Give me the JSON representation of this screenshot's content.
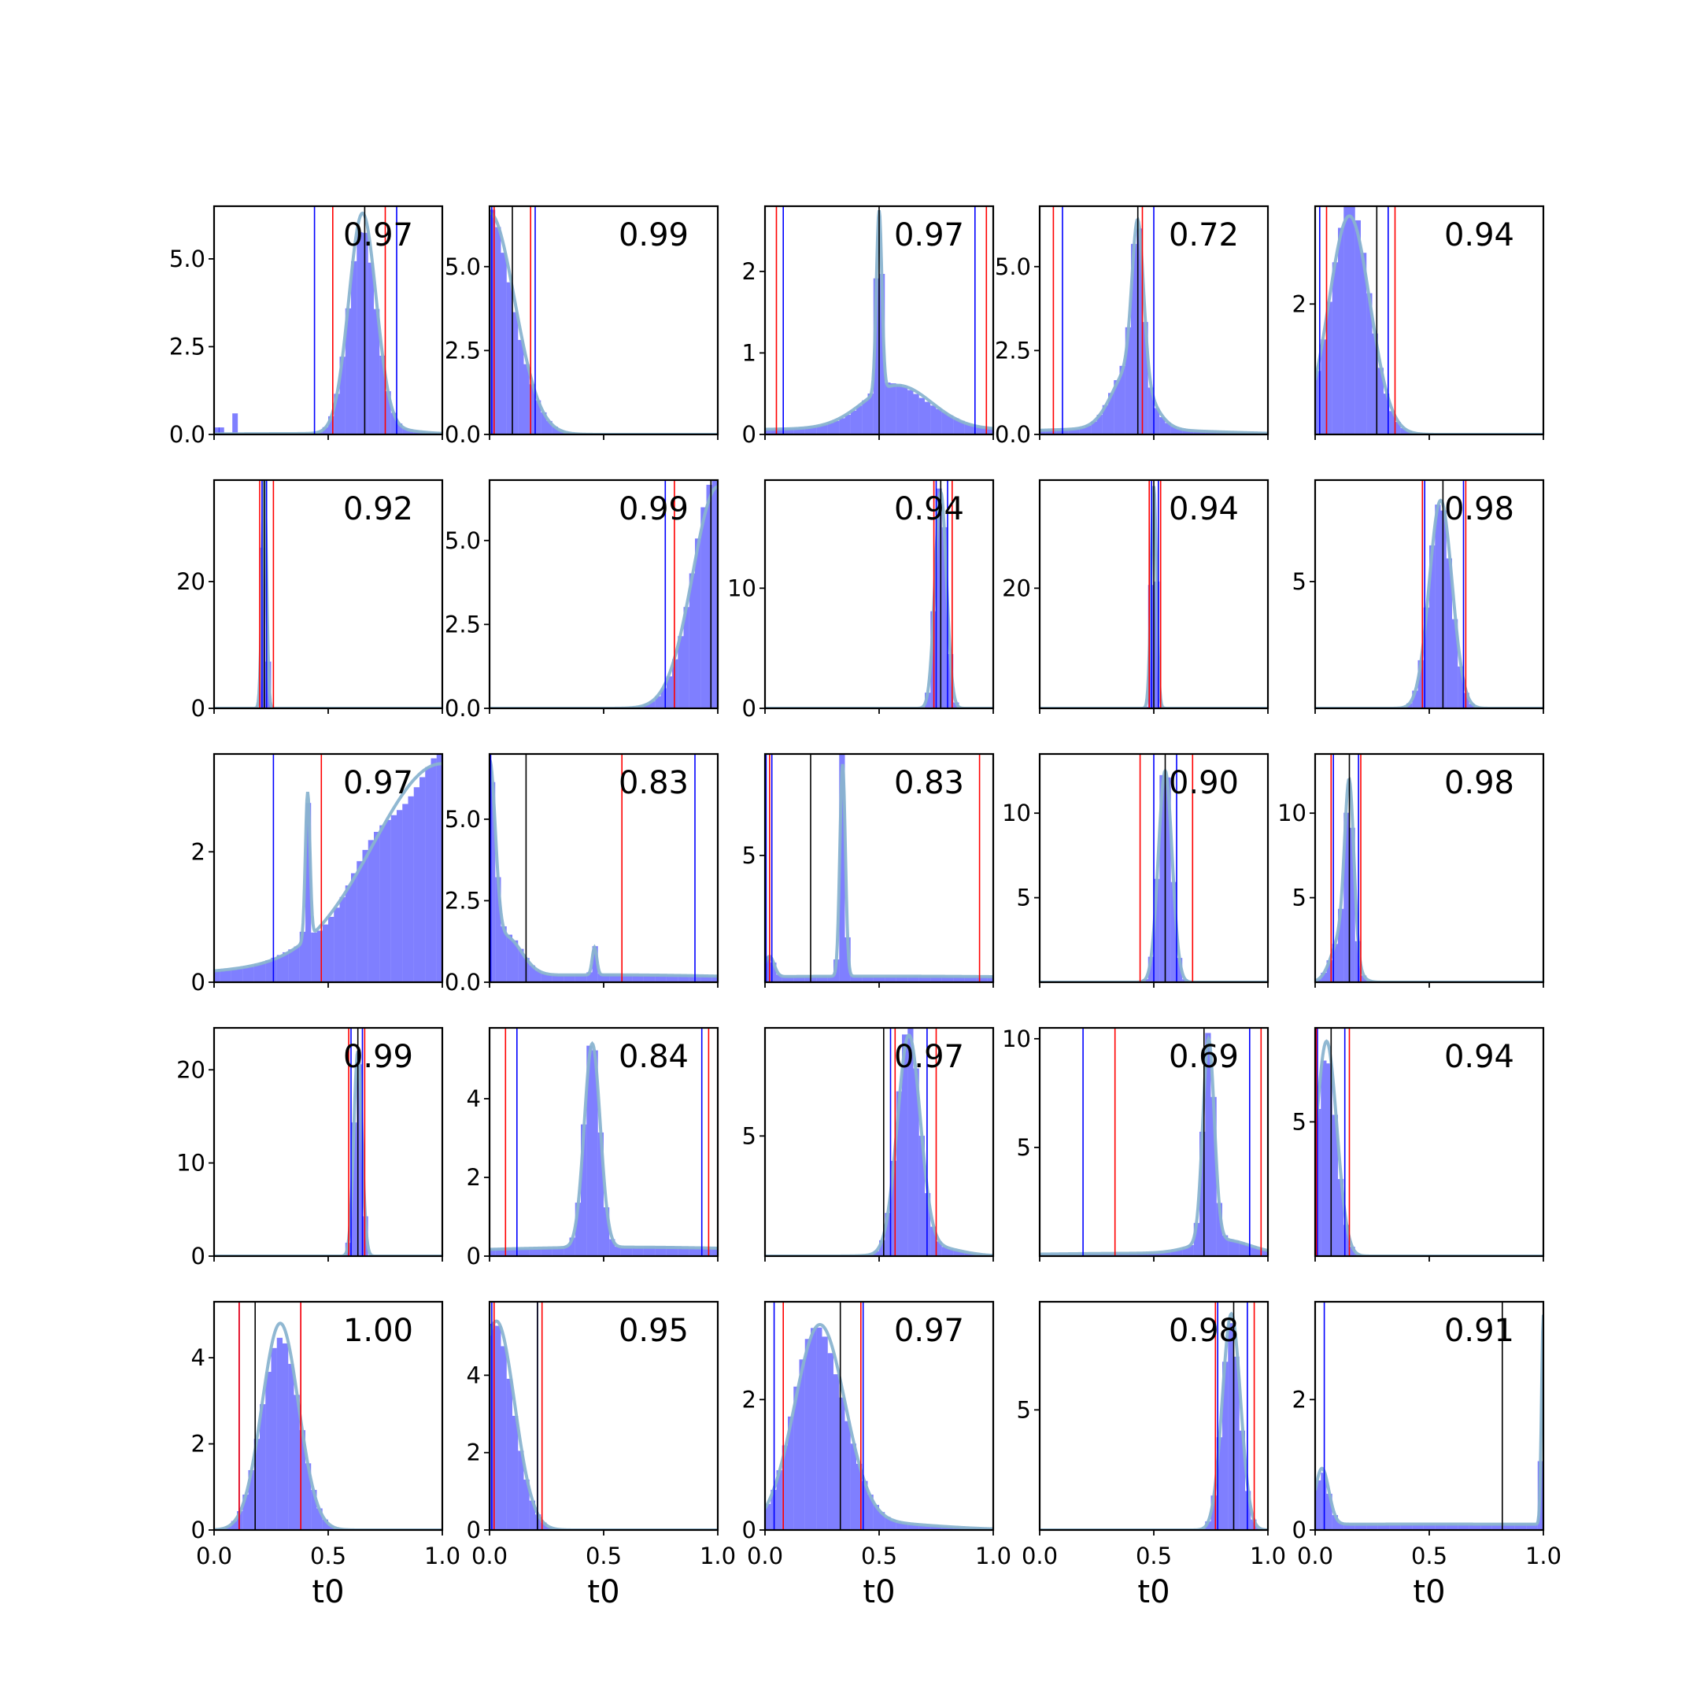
{
  "figure": {
    "rows": 5,
    "cols": 5,
    "background": "#ffffff",
    "colors": {
      "hist": "#0000ff",
      "hist_alpha": 0.5,
      "kde": "#8ab4d0",
      "marker_blue": "#0000ff",
      "marker_red": "#ff0000",
      "marker_black": "#000000"
    },
    "xlabel": "t0",
    "x_ticks": [
      "0.0",
      "0.5",
      "1.0"
    ]
  },
  "chart_data": [
    {
      "type": "histogram",
      "row": 0,
      "col": 0,
      "annotation": "0.97",
      "ylim": [
        0,
        6.5
      ],
      "y_ticks": [
        {
          "v": 0,
          "label": "0.0"
        },
        {
          "v": 2.5,
          "label": "2.5"
        },
        {
          "v": 5,
          "label": "5.0"
        }
      ],
      "density": {
        "comps": [
          {
            "w": 0.93,
            "mu": 0.65,
            "sd": 0.06
          },
          {
            "w": 0.04,
            "mu": 0.75,
            "sd": 0.12
          },
          {
            "w": 0.03,
            "mu": 0.5,
            "sd": 0.5
          }
        ],
        "peak": 6.3
      },
      "extra_bars": [
        [
          0.0,
          0.2
        ],
        [
          0.02,
          0.2
        ],
        [
          0.08,
          0.6
        ]
      ],
      "markers": {
        "blue": [
          0.44,
          0.8
        ],
        "red": [
          0.52,
          0.75
        ],
        "black": [
          0.66
        ]
      }
    },
    {
      "type": "histogram",
      "row": 0,
      "col": 1,
      "annotation": "0.99",
      "ylim": [
        0,
        6.8
      ],
      "y_ticks": [
        {
          "v": 0,
          "label": "0.0"
        },
        {
          "v": 2.5,
          "label": "2.5"
        },
        {
          "v": 5,
          "label": "5.0"
        }
      ],
      "density": {
        "comps": [
          {
            "w": 1,
            "mu": 0.0,
            "sd": 0.11
          }
        ],
        "peak": 6.6
      },
      "markers": {
        "blue": [
          0.01,
          0.2
        ],
        "red": [
          0.02,
          0.18
        ],
        "black": [
          0.1
        ]
      }
    },
    {
      "type": "histogram",
      "row": 0,
      "col": 2,
      "annotation": "0.97",
      "ylim": [
        0,
        2.8
      ],
      "y_ticks": [
        {
          "v": 0,
          "label": "0"
        },
        {
          "v": 1,
          "label": "1"
        },
        {
          "v": 2,
          "label": "2"
        }
      ],
      "density": {
        "comps": [
          {
            "w": 0.15,
            "mu": 0.5,
            "sd": 0.012
          },
          {
            "w": 0.45,
            "mu": 0.58,
            "sd": 0.15
          },
          {
            "w": 0.4,
            "mu": 0.5,
            "sd": 1.0
          }
        ],
        "peak": 2.75
      },
      "markers": {
        "blue": [
          0.08,
          0.92
        ],
        "red": [
          0.05,
          0.97
        ],
        "black": [
          0.5
        ]
      }
    },
    {
      "type": "histogram",
      "row": 0,
      "col": 3,
      "annotation": "0.72",
      "ylim": [
        0,
        6.8
      ],
      "y_ticks": [
        {
          "v": 0,
          "label": "0.0"
        },
        {
          "v": 2.5,
          "label": "2.5"
        },
        {
          "v": 5,
          "label": "5.0"
        }
      ],
      "density": {
        "comps": [
          {
            "w": 0.35,
            "mu": 0.43,
            "sd": 0.025
          },
          {
            "w": 0.45,
            "mu": 0.4,
            "sd": 0.08
          },
          {
            "w": 0.2,
            "mu": 0.3,
            "sd": 0.4
          }
        ],
        "peak": 6.4
      },
      "markers": {
        "blue": [
          0.1,
          0.5
        ],
        "red": [
          0.06,
          0.45
        ],
        "black": [
          0.43
        ]
      }
    },
    {
      "type": "histogram",
      "row": 0,
      "col": 4,
      "annotation": "0.94",
      "ylim": [
        0,
        3.5
      ],
      "y_ticks": [
        {
          "v": 2,
          "label": "2"
        }
      ],
      "density": {
        "comps": [
          {
            "w": 1,
            "mu": 0.15,
            "sd": 0.09
          }
        ],
        "peak": 3.35
      },
      "markers": {
        "blue": [
          0.02,
          0.32
        ],
        "red": [
          0.05,
          0.35
        ],
        "black": [
          0.27
        ]
      }
    },
    {
      "type": "histogram",
      "row": 1,
      "col": 0,
      "annotation": "0.92",
      "ylim": [
        0,
        36
      ],
      "y_ticks": [
        {
          "v": 0,
          "label": "0"
        },
        {
          "v": 20,
          "label": "20"
        }
      ],
      "density": {
        "comps": [
          {
            "w": 1,
            "mu": 0.22,
            "sd": 0.01
          }
        ],
        "peak": 36
      },
      "markers": {
        "blue": [
          0.21,
          0.23
        ],
        "red": [
          0.2,
          0.26
        ],
        "black": [
          0.22
        ]
      }
    },
    {
      "type": "histogram",
      "row": 1,
      "col": 1,
      "annotation": "0.99",
      "ylim": [
        0,
        6.8
      ],
      "y_ticks": [
        {
          "v": 0,
          "label": "0.0"
        },
        {
          "v": 2.5,
          "label": "2.5"
        },
        {
          "v": 5,
          "label": "5.0"
        }
      ],
      "density": {
        "comps": [
          {
            "w": 1,
            "mu": 1.0,
            "sd": 0.11
          }
        ],
        "peak": 6.6
      },
      "markers": {
        "blue": [
          0.77
        ],
        "red": [
          0.81
        ],
        "black": [
          0.97
        ]
      }
    },
    {
      "type": "histogram",
      "row": 1,
      "col": 2,
      "annotation": "0.94",
      "ylim": [
        0,
        19
      ],
      "y_ticks": [
        {
          "v": 0,
          "label": "0"
        },
        {
          "v": 10,
          "label": "10"
        }
      ],
      "density": {
        "comps": [
          {
            "w": 1,
            "mu": 0.77,
            "sd": 0.025
          }
        ],
        "peak": 18
      },
      "markers": {
        "blue": [
          0.75,
          0.8
        ],
        "red": [
          0.74,
          0.82
        ],
        "black": [
          0.77
        ]
      }
    },
    {
      "type": "histogram",
      "row": 1,
      "col": 3,
      "annotation": "0.94",
      "ylim": [
        0,
        38
      ],
      "y_ticks": [
        {
          "v": 20,
          "label": "20"
        }
      ],
      "density": {
        "comps": [
          {
            "w": 1,
            "mu": 0.5,
            "sd": 0.012
          }
        ],
        "peak": 37
      },
      "markers": {
        "blue": [
          0.49,
          0.52
        ],
        "red": [
          0.48,
          0.53
        ],
        "black": [
          0.5
        ]
      }
    },
    {
      "type": "histogram",
      "row": 1,
      "col": 4,
      "annotation": "0.98",
      "ylim": [
        0,
        9
      ],
      "y_ticks": [
        {
          "v": 5,
          "label": "5"
        }
      ],
      "density": {
        "comps": [
          {
            "w": 1,
            "mu": 0.55,
            "sd": 0.05
          }
        ],
        "peak": 8.2
      },
      "markers": {
        "blue": [
          0.48,
          0.65
        ],
        "red": [
          0.47,
          0.66
        ],
        "black": [
          0.56
        ]
      }
    },
    {
      "type": "histogram",
      "row": 2,
      "col": 0,
      "annotation": "0.97",
      "ylim": [
        0,
        3.5
      ],
      "y_ticks": [
        {
          "v": 0,
          "label": "0"
        },
        {
          "v": 2,
          "label": "2"
        }
      ],
      "density": {
        "comps": [
          {
            "w": 0.85,
            "mu": 1.0,
            "sd": 0.3
          },
          {
            "w": 0.02,
            "mu": 0.41,
            "sd": 0.01
          },
          {
            "w": 0.13,
            "mu": 0.5,
            "sd": 0.7
          }
        ],
        "peak": 3.35
      },
      "markers": {
        "blue": [
          0.26,
          1.0
        ],
        "red": [
          0.47
        ],
        "black": []
      }
    },
    {
      "type": "histogram",
      "row": 2,
      "col": 1,
      "annotation": "0.83",
      "ylim": [
        0,
        7
      ],
      "y_ticks": [
        {
          "v": 0,
          "label": "0.0"
        },
        {
          "v": 2.5,
          "label": "2.5"
        },
        {
          "v": 5,
          "label": "5.0"
        }
      ],
      "density": {
        "comps": [
          {
            "w": 0.35,
            "mu": 0.0,
            "sd": 0.025
          },
          {
            "w": 0.2,
            "mu": 0.07,
            "sd": 0.07
          },
          {
            "w": 0.02,
            "mu": 0.46,
            "sd": 0.01
          },
          {
            "w": 0.43,
            "mu": 0.5,
            "sd": 0.8
          }
        ],
        "peak": 6.8
      },
      "markers": {
        "blue": [
          0.005,
          0.9
        ],
        "red": [
          0.58
        ],
        "black": [
          0.16
        ]
      }
    },
    {
      "type": "histogram",
      "row": 2,
      "col": 2,
      "annotation": "0.83",
      "ylim": [
        0,
        9
      ],
      "y_ticks": [
        {
          "v": 5,
          "label": "5"
        }
      ],
      "density": {
        "comps": [
          {
            "w": 0.25,
            "mu": 0.34,
            "sd": 0.012
          },
          {
            "w": 0.04,
            "mu": 0.02,
            "sd": 0.02
          },
          {
            "w": 0.71,
            "mu": 0.5,
            "sd": 1.2
          }
        ],
        "peak": 8.6
      },
      "markers": {
        "blue": [
          0.005,
          0.03
        ],
        "red": [
          0.02,
          0.94
        ],
        "black": [
          0.2
        ]
      }
    },
    {
      "type": "histogram",
      "row": 2,
      "col": 3,
      "annotation": "0.90",
      "ylim": [
        0,
        13.5
      ],
      "y_ticks": [
        {
          "v": 5,
          "label": "5"
        },
        {
          "v": 10,
          "label": "10"
        }
      ],
      "density": {
        "comps": [
          {
            "w": 1,
            "mu": 0.55,
            "sd": 0.03
          }
        ],
        "peak": 12.5
      },
      "markers": {
        "blue": [
          0.5,
          0.6
        ],
        "red": [
          0.44,
          0.67
        ],
        "black": [
          0.55
        ]
      }
    },
    {
      "type": "histogram",
      "row": 2,
      "col": 4,
      "annotation": "0.98",
      "ylim": [
        0,
        13.5
      ],
      "y_ticks": [
        {
          "v": 5,
          "label": "5"
        },
        {
          "v": 10,
          "label": "10"
        }
      ],
      "density": {
        "comps": [
          {
            "w": 0.6,
            "mu": 0.15,
            "sd": 0.02
          },
          {
            "w": 0.4,
            "mu": 0.12,
            "sd": 0.045
          }
        ],
        "peak": 12
      },
      "markers": {
        "blue": [
          0.08,
          0.19
        ],
        "red": [
          0.07,
          0.2
        ],
        "black": [
          0.15
        ]
      }
    },
    {
      "type": "histogram",
      "row": 3,
      "col": 0,
      "annotation": "0.99",
      "ylim": [
        0,
        24.5
      ],
      "y_ticks": [
        {
          "v": 0,
          "label": "0"
        },
        {
          "v": 10,
          "label": "10"
        },
        {
          "v": 20,
          "label": "20"
        }
      ],
      "density": {
        "comps": [
          {
            "w": 1,
            "mu": 0.63,
            "sd": 0.018
          }
        ],
        "peak": 22
      },
      "markers": {
        "blue": [
          0.6,
          0.65
        ],
        "red": [
          0.59,
          0.66
        ],
        "black": [
          0.63
        ]
      }
    },
    {
      "type": "histogram",
      "row": 3,
      "col": 1,
      "annotation": "0.84",
      "ylim": [
        0,
        5.8
      ],
      "y_ticks": [
        {
          "v": 0,
          "label": "0"
        },
        {
          "v": 2,
          "label": "2"
        },
        {
          "v": 4,
          "label": "4"
        }
      ],
      "density": {
        "comps": [
          {
            "w": 0.5,
            "mu": 0.45,
            "sd": 0.035
          },
          {
            "w": 0.5,
            "mu": 0.6,
            "sd": 0.8
          }
        ],
        "peak": 5.4
      },
      "markers": {
        "blue": [
          0.12,
          0.93
        ],
        "red": [
          0.07,
          0.96
        ],
        "black": []
      }
    },
    {
      "type": "histogram",
      "row": 3,
      "col": 2,
      "annotation": "0.97",
      "ylim": [
        0,
        9.5
      ],
      "y_ticks": [
        {
          "v": 5,
          "label": "5"
        }
      ],
      "density": {
        "comps": [
          {
            "w": 0.9,
            "mu": 0.63,
            "sd": 0.05
          },
          {
            "w": 0.1,
            "mu": 0.72,
            "sd": 0.12
          }
        ],
        "peak": 9.2
      },
      "markers": {
        "blue": [
          0.55,
          0.71
        ],
        "red": [
          0.57,
          0.75
        ],
        "black": [
          0.52
        ]
      }
    },
    {
      "type": "histogram",
      "row": 3,
      "col": 3,
      "annotation": "0.69",
      "ylim": [
        0,
        10.5
      ],
      "y_ticks": [
        {
          "v": 5,
          "label": "5"
        },
        {
          "v": 10,
          "label": "10"
        }
      ],
      "density": {
        "comps": [
          {
            "w": 0.6,
            "mu": 0.74,
            "sd": 0.025
          },
          {
            "w": 0.2,
            "mu": 0.8,
            "sd": 0.12
          },
          {
            "w": 0.2,
            "mu": 0.5,
            "sd": 0.6
          }
        ],
        "peak": 10
      },
      "markers": {
        "blue": [
          0.19,
          0.92
        ],
        "red": [
          0.33,
          0.97
        ],
        "black": [
          0.72
        ]
      }
    },
    {
      "type": "histogram",
      "row": 3,
      "col": 4,
      "annotation": "0.94",
      "ylim": [
        0,
        8.5
      ],
      "y_ticks": [
        {
          "v": 5,
          "label": "5"
        }
      ],
      "density": {
        "comps": [
          {
            "w": 1,
            "mu": 0.05,
            "sd": 0.045
          }
        ],
        "peak": 8.0
      },
      "markers": {
        "blue": [
          0.01,
          0.13
        ],
        "red": [
          0.005,
          0.15
        ],
        "black": [
          0.07
        ]
      }
    },
    {
      "type": "histogram",
      "row": 4,
      "col": 0,
      "annotation": "1.00",
      "ylim": [
        0,
        5.3
      ],
      "y_ticks": [
        {
          "v": 0,
          "label": "0"
        },
        {
          "v": 2,
          "label": "2"
        },
        {
          "v": 4,
          "label": "4"
        }
      ],
      "density": {
        "comps": [
          {
            "w": 1,
            "mu": 0.29,
            "sd": 0.08
          }
        ],
        "peak": 4.8
      },
      "markers": {
        "blue": [
          0.11,
          0.38
        ],
        "red": [
          0.11,
          0.38
        ],
        "black": [
          0.18
        ]
      }
    },
    {
      "type": "histogram",
      "row": 4,
      "col": 1,
      "annotation": "0.95",
      "ylim": [
        0,
        5.9
      ],
      "y_ticks": [
        {
          "v": 0,
          "label": "0"
        },
        {
          "v": 2,
          "label": "2"
        },
        {
          "v": 4,
          "label": "4"
        }
      ],
      "density": {
        "comps": [
          {
            "w": 1,
            "mu": 0.03,
            "sd": 0.08
          }
        ],
        "peak": 5.4
      },
      "markers": {
        "blue": [
          0.01,
          0.21
        ],
        "red": [
          0.02,
          0.23
        ],
        "black": [
          0.21
        ]
      }
    },
    {
      "type": "histogram",
      "row": 4,
      "col": 2,
      "annotation": "0.97",
      "ylim": [
        0,
        3.5
      ],
      "y_ticks": [
        {
          "v": 0,
          "label": "0"
        },
        {
          "v": 2,
          "label": "2"
        }
      ],
      "density": {
        "comps": [
          {
            "w": 0.9,
            "mu": 0.24,
            "sd": 0.11
          },
          {
            "w": 0.1,
            "mu": 0.4,
            "sd": 0.3
          }
        ],
        "peak": 3.15
      },
      "markers": {
        "blue": [
          0.04,
          0.43
        ],
        "red": [
          0.08,
          0.42
        ],
        "black": [
          0.33
        ]
      }
    },
    {
      "type": "histogram",
      "row": 4,
      "col": 3,
      "annotation": "0.98",
      "ylim": [
        0,
        9.5
      ],
      "y_ticks": [
        {
          "v": 5,
          "label": "5"
        }
      ],
      "density": {
        "comps": [
          {
            "w": 1,
            "mu": 0.84,
            "sd": 0.04
          }
        ],
        "peak": 9.0
      },
      "markers": {
        "blue": [
          0.78,
          0.91
        ],
        "red": [
          0.77,
          0.94
        ],
        "black": [
          0.85
        ]
      }
    },
    {
      "type": "histogram",
      "row": 4,
      "col": 4,
      "annotation": "0.91",
      "ylim": [
        0,
        3.5
      ],
      "y_ticks": [
        {
          "v": 0,
          "label": "0"
        },
        {
          "v": 2,
          "label": "2"
        }
      ],
      "density": {
        "comps": [
          {
            "w": 0.08,
            "mu": 1.0,
            "sd": 0.008
          },
          {
            "w": 0.08,
            "mu": 0.03,
            "sd": 0.03
          },
          {
            "w": 0.84,
            "mu": 0.5,
            "sd": 3.0
          }
        ],
        "peak": 3.3
      },
      "markers": {
        "blue": [
          0.04,
          1.0
        ],
        "red": [],
        "black": [
          0.82
        ]
      }
    }
  ]
}
